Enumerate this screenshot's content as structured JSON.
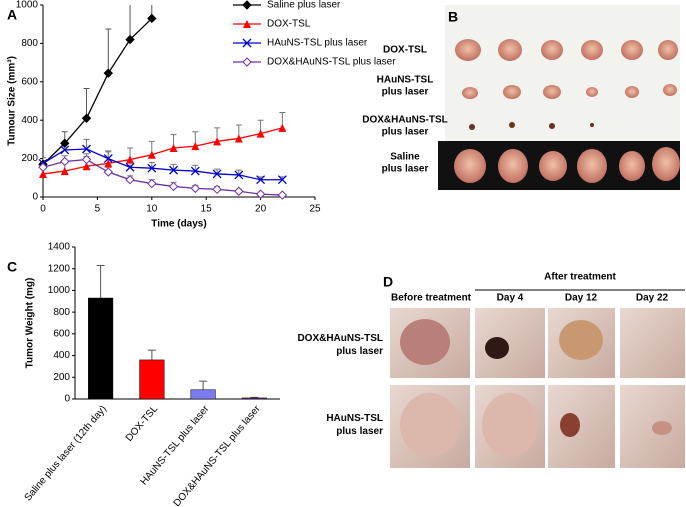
{
  "chart_data": [
    {
      "type": "line",
      "x_label": "Time (days)",
      "y_label": "Tumour Size (mm³)",
      "x": [
        0,
        2,
        4,
        6,
        8,
        10,
        12,
        14,
        16,
        18,
        20,
        22
      ],
      "xlim": [
        0,
        25
      ],
      "xticks": [
        0,
        5,
        10,
        15,
        20,
        25
      ],
      "ylim": [
        0,
        1000
      ],
      "yticks": [
        0,
        200,
        400,
        600,
        800,
        1000
      ],
      "legend": "upper right",
      "series": [
        {
          "name": "Saline plus laser",
          "color": "#000000",
          "marker": "diamond",
          "values": [
            170,
            280,
            410,
            645,
            820,
            930,
            null,
            null,
            null,
            null,
            null,
            null
          ],
          "errors": [
            20,
            60,
            155,
            230,
            250,
            280,
            null,
            null,
            null,
            null,
            null,
            null
          ]
        },
        {
          "name": "DOX-TSL",
          "color": "#ff0000",
          "marker": "triangle",
          "values": [
            120,
            135,
            160,
            175,
            195,
            220,
            255,
            265,
            290,
            305,
            330,
            360
          ],
          "errors": [
            40,
            45,
            50,
            60,
            60,
            70,
            70,
            75,
            70,
            70,
            70,
            80
          ]
        },
        {
          "name": "HAuNS-TSL plus laser",
          "color": "#0000cc",
          "marker": "x",
          "values": [
            175,
            245,
            250,
            200,
            155,
            150,
            140,
            135,
            120,
            115,
            90,
            90
          ],
          "errors": [
            30,
            40,
            50,
            40,
            30,
            30,
            30,
            30,
            25,
            25,
            15,
            15
          ]
        },
        {
          "name": "DOX&HAuNS-TSL plus laser",
          "color": "#7030a0",
          "marker": "open-diamond",
          "values": [
            155,
            185,
            195,
            130,
            90,
            70,
            55,
            45,
            40,
            30,
            15,
            10
          ],
          "errors": [
            20,
            30,
            30,
            25,
            20,
            20,
            20,
            15,
            15,
            10,
            10,
            5
          ]
        }
      ]
    },
    {
      "type": "bar",
      "y_label": "Tumor Weight (mg)",
      "categories": [
        "Saline plus laser (12th day)",
        "DOX-TSL",
        "HAuNS-TSL plus laser",
        "DOX&HAuNS-TSL plus laser"
      ],
      "values": [
        930,
        360,
        85,
        10
      ],
      "errors": [
        300,
        90,
        80,
        5
      ],
      "colors": [
        "#000000",
        "#ff0000",
        "#7b7bef",
        "#7030a0"
      ],
      "ylim": [
        0,
        1400
      ],
      "yticks": [
        0,
        200,
        400,
        600,
        800,
        1000,
        1200,
        1400
      ]
    }
  ],
  "figure": {
    "panels": [
      "A",
      "B",
      "C",
      "D"
    ],
    "b_labels": [
      [
        "DOX-TSL"
      ],
      [
        "HAuNS-TSL",
        "plus laser"
      ],
      [
        "DOX&HAuNS-TSL",
        "plus laser"
      ],
      [
        "Saline",
        "plus laser"
      ]
    ],
    "d_header": "After treatment",
    "d_columns": [
      "Before treatment",
      "Day 4",
      "Day 12",
      "Day 22"
    ],
    "d_rows": [
      [
        "DOX&HAuNS-TSL",
        "plus laser"
      ],
      [
        "HAuNS-TSL",
        "plus laser"
      ]
    ]
  }
}
